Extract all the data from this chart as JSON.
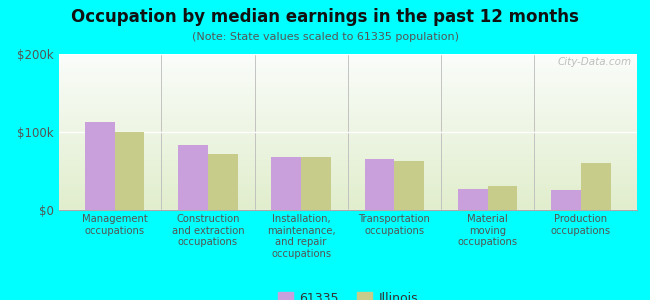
{
  "title": "Occupation by median earnings in the past 12 months",
  "subtitle": "(Note: State values scaled to 61335 population)",
  "categories": [
    "Management\noccupations",
    "Construction\nand extraction\noccupations",
    "Installation,\nmaintenance,\nand repair\noccupations",
    "Transportation\noccupations",
    "Material\nmoving\noccupations",
    "Production\noccupations"
  ],
  "values_61335": [
    113000,
    83000,
    68000,
    65000,
    27000,
    26000
  ],
  "values_illinois": [
    100000,
    72000,
    68000,
    63000,
    31000,
    60000
  ],
  "color_61335": "#c9a0dc",
  "color_illinois": "#c8cc8a",
  "ylim": [
    0,
    200000
  ],
  "yticks": [
    0,
    100000,
    200000
  ],
  "ytick_labels": [
    "$0",
    "$100k",
    "$200k"
  ],
  "background_color": "#00ffff",
  "bar_width": 0.32,
  "legend_labels": [
    "61335",
    "Illinois"
  ],
  "watermark": "City-Data.com"
}
